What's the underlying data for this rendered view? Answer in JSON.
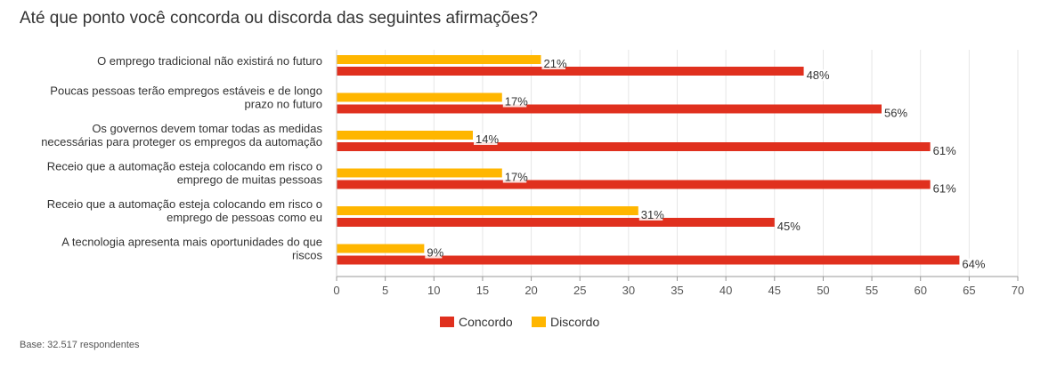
{
  "chart_data": {
    "type": "bar",
    "orientation": "horizontal",
    "title": "Até que ponto você concorda ou discorda das seguintes afirmações?",
    "categories": [
      [
        "O emprego tradicional não existirá no futuro"
      ],
      [
        "Poucas pessoas terão empregos estáveis e de longo",
        "prazo no futuro"
      ],
      [
        "Os governos devem tomar todas as medidas",
        "necessárias para proteger os empregos da automação"
      ],
      [
        "Receio que a automação esteja colocando em risco o",
        "emprego de muitas pessoas"
      ],
      [
        "Receio que a automação esteja colocando em risco o",
        "emprego de pessoas como eu"
      ],
      [
        "A tecnologia apresenta mais oportunidades do que",
        "riscos"
      ]
    ],
    "series": [
      {
        "name": "Discordo",
        "color": "#FFB600",
        "values": [
          21,
          17,
          14,
          17,
          31,
          9
        ]
      },
      {
        "name": "Concordo",
        "color": "#E0301E",
        "values": [
          48,
          56,
          61,
          61,
          45,
          64
        ]
      }
    ],
    "value_suffix": "%",
    "xlim": [
      0,
      70
    ],
    "xticks": [
      0,
      5,
      10,
      15,
      20,
      25,
      30,
      35,
      40,
      45,
      50,
      55,
      60,
      65,
      70
    ],
    "grid": true,
    "legend": {
      "placement": "bottom-center",
      "entries": [
        {
          "label": "Concordo",
          "color": "#E0301E"
        },
        {
          "label": "Discordo",
          "color": "#FFB600"
        }
      ]
    }
  },
  "footnote": "Base: 32.517 respondentes"
}
